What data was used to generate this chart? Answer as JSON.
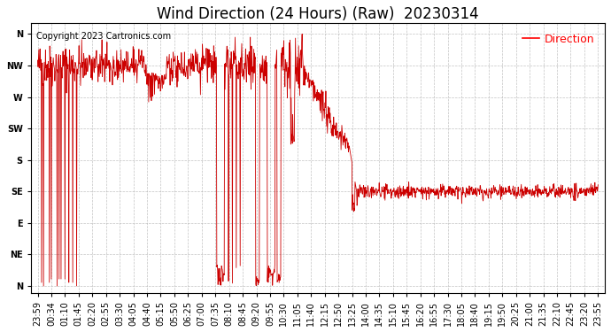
{
  "title": "Wind Direction (24 Hours) (Raw)  20230314",
  "copyright": "Copyright 2023 Cartronics.com",
  "legend_label": "Direction",
  "legend_color": "#ff0000",
  "line_color": "#cc0000",
  "background_color": "#ffffff",
  "grid_color": "#aaaaaa",
  "ytick_labels": [
    "N",
    "NW",
    "W",
    "SW",
    "S",
    "SE",
    "E",
    "NE",
    "N"
  ],
  "ytick_values": [
    360,
    315,
    270,
    225,
    180,
    135,
    90,
    45,
    0
  ],
  "ylim": [
    -10,
    375
  ],
  "xtick_labels": [
    "23:59",
    "00:34",
    "01:10",
    "01:45",
    "02:20",
    "02:55",
    "03:30",
    "04:05",
    "04:40",
    "05:15",
    "05:50",
    "06:25",
    "07:00",
    "07:35",
    "08:10",
    "08:45",
    "09:20",
    "09:55",
    "10:30",
    "11:05",
    "11:40",
    "12:15",
    "12:50",
    "13:25",
    "14:00",
    "14:35",
    "15:10",
    "15:45",
    "16:20",
    "16:55",
    "17:30",
    "18:05",
    "18:40",
    "19:15",
    "19:50",
    "20:25",
    "21:00",
    "21:35",
    "22:10",
    "22:45",
    "23:20",
    "23:55"
  ],
  "title_fontsize": 12,
  "axis_fontsize": 7,
  "copyright_fontsize": 7
}
